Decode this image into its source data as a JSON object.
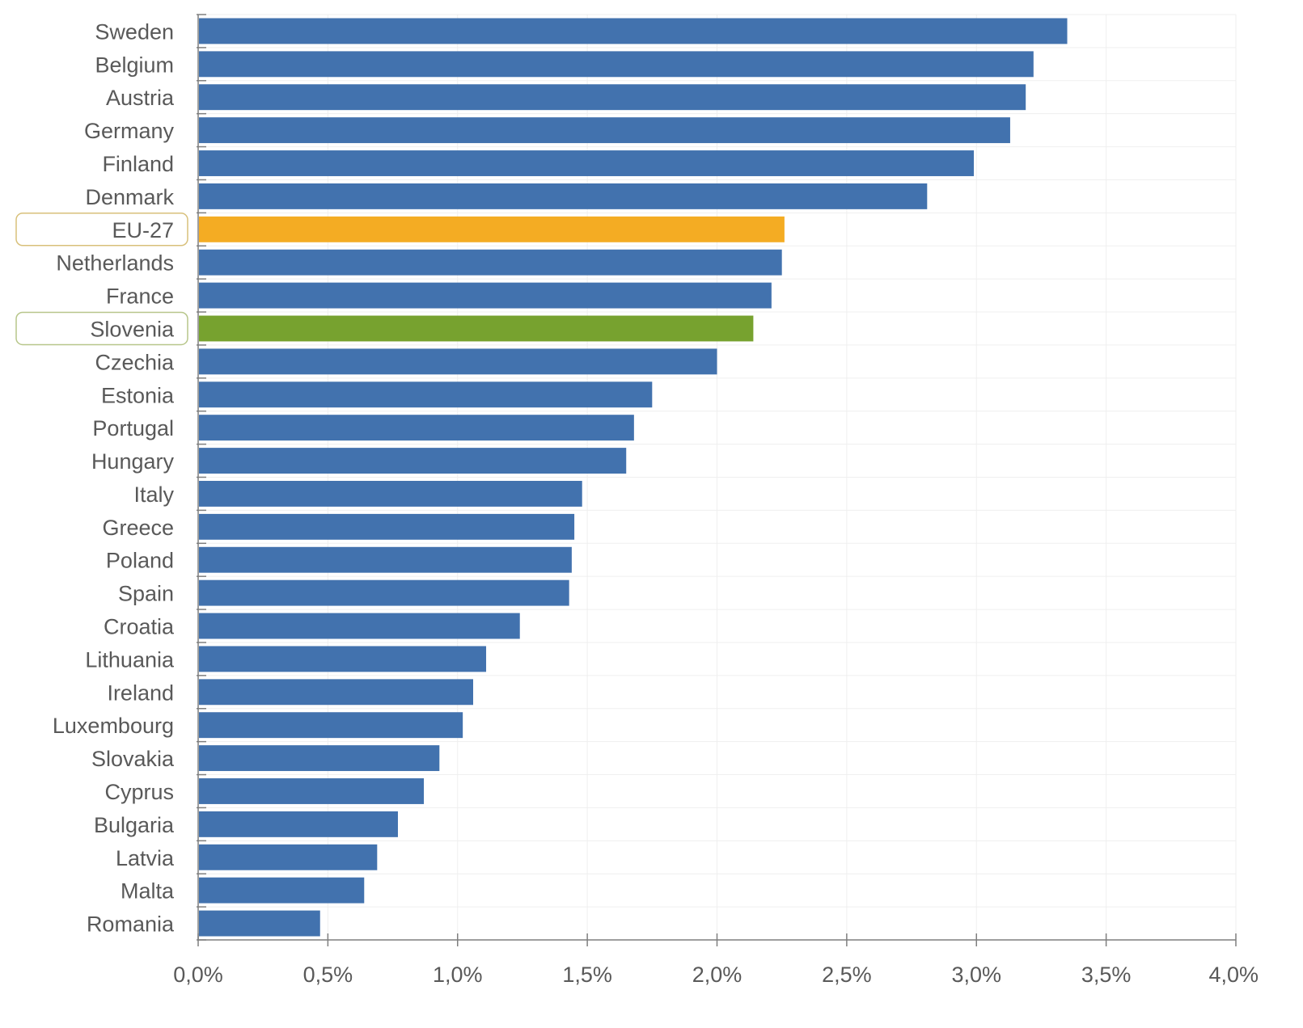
{
  "chart_data": {
    "type": "bar",
    "orientation": "horizontal",
    "categories": [
      "Sweden",
      "Belgium",
      "Austria",
      "Germany",
      "Finland",
      "Denmark",
      "EU-27",
      "Netherlands",
      "France",
      "Slovenia",
      "Czechia",
      "Estonia",
      "Portugal",
      "Hungary",
      "Italy",
      "Greece",
      "Poland",
      "Spain",
      "Croatia",
      "Lithuania",
      "Ireland",
      "Luxembourg",
      "Slovakia",
      "Cyprus",
      "Bulgaria",
      "Latvia",
      "Malta",
      "Romania"
    ],
    "values": [
      3.35,
      3.22,
      3.19,
      3.13,
      2.99,
      2.81,
      2.26,
      2.25,
      2.21,
      2.14,
      2.0,
      1.75,
      1.68,
      1.65,
      1.48,
      1.45,
      1.44,
      1.43,
      1.24,
      1.11,
      1.06,
      1.02,
      0.93,
      0.87,
      0.77,
      0.69,
      0.64,
      0.47
    ],
    "xlim": [
      0,
      4.0
    ],
    "xticks": [
      "0,0%",
      "0,5%",
      "1,0%",
      "1,5%",
      "2,0%",
      "2,5%",
      "3,0%",
      "3,5%",
      "4,0%"
    ],
    "grid": true,
    "colors": {
      "default": "#4272ae",
      "highlight_eu": "#f4ac23",
      "highlight_country": "#77a22f",
      "label_box_eu": "#d8c07a",
      "label_box_country": "#b7c68a",
      "axis": "#7f7f7f",
      "grid": "#efefef"
    },
    "highlights": {
      "EU-27": "highlight_eu",
      "Slovenia": "highlight_country"
    }
  }
}
